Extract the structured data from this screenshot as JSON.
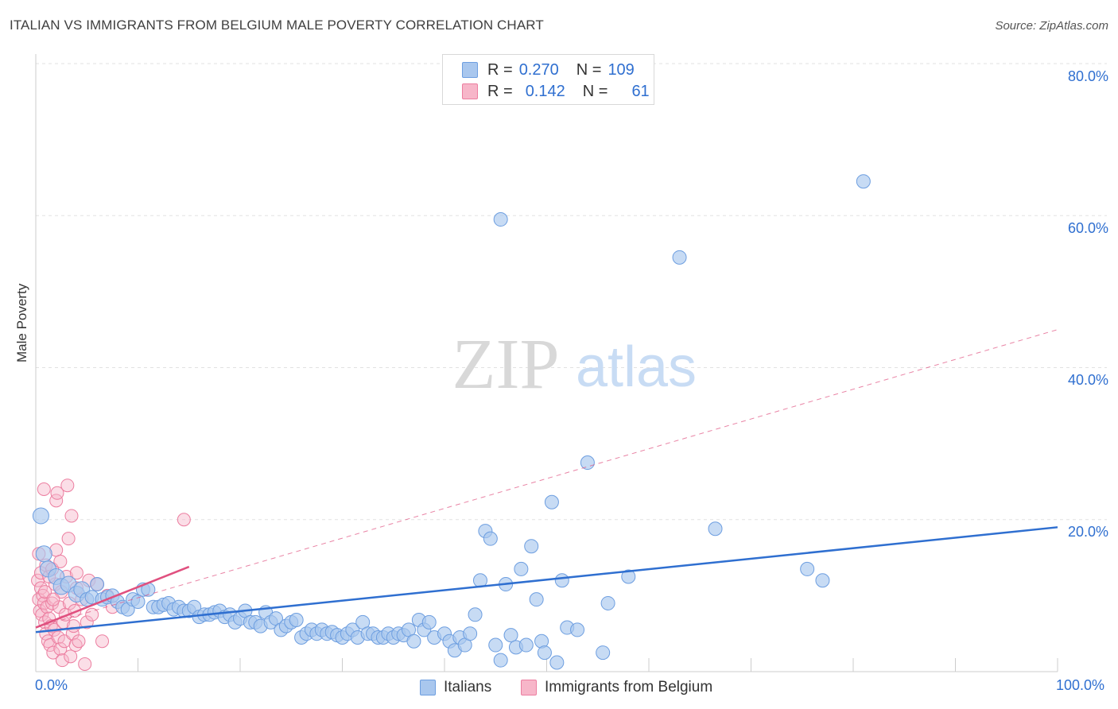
{
  "title": "ITALIAN VS IMMIGRANTS FROM BELGIUM MALE POVERTY CORRELATION CHART",
  "source": "Source: ZipAtlas.com",
  "watermark": {
    "zip": "ZIP",
    "atlas": "atlas"
  },
  "legend": {
    "italians": {
      "r_label": "R =",
      "r_value": "0.270",
      "n_label": "N =",
      "n_value": "109"
    },
    "belgium": {
      "r_label": "R =",
      "r_value": "0.142",
      "n_label": "N =",
      "n_value": "61"
    }
  },
  "colors": {
    "blue_fill": "#a9c7ee",
    "blue_stroke": "#6d9ee0",
    "blue_line": "#2f6fd0",
    "pink_fill": "#f7b6c9",
    "pink_stroke": "#ec7ea0",
    "pink_line": "#e0507f",
    "tick_text": "#2f6fd0",
    "grid": "#e2e2e2"
  },
  "chart_data": {
    "type": "scatter",
    "title": "ITALIAN VS IMMIGRANTS FROM BELGIUM MALE POVERTY CORRELATION CHART",
    "xlabel": "",
    "ylabel": "Male Poverty",
    "xlim": [
      0,
      100
    ],
    "ylim": [
      0,
      80
    ],
    "x_tick_labels": [
      "0.0%",
      "100.0%"
    ],
    "y_ticks": [
      20,
      40,
      60,
      80
    ],
    "y_tick_labels": [
      "20.0%",
      "40.0%",
      "60.0%",
      "80.0%"
    ],
    "grid": true,
    "series": [
      {
        "name": "Italians",
        "color": "blue",
        "trend": {
          "x": [
            0,
            100
          ],
          "y": [
            5.2,
            19.0
          ],
          "style": "solid"
        },
        "points": [
          [
            0.5,
            20.5
          ],
          [
            0.8,
            15.5
          ],
          [
            1.2,
            13.5
          ],
          [
            2.0,
            12.5
          ],
          [
            2.5,
            11.2
          ],
          [
            3.2,
            11.5
          ],
          [
            4.0,
            10.2
          ],
          [
            4.5,
            10.8
          ],
          [
            5.0,
            9.5
          ],
          [
            5.5,
            9.8
          ],
          [
            6.0,
            11.5
          ],
          [
            6.5,
            9.5
          ],
          [
            7.0,
            9.8
          ],
          [
            7.5,
            10.0
          ],
          [
            8.0,
            9.2
          ],
          [
            8.5,
            8.5
          ],
          [
            9.0,
            8.2
          ],
          [
            9.5,
            9.5
          ],
          [
            10.0,
            9.2
          ],
          [
            10.5,
            10.8
          ],
          [
            11.0,
            10.8
          ],
          [
            11.5,
            8.5
          ],
          [
            12.0,
            8.5
          ],
          [
            12.5,
            8.8
          ],
          [
            13.0,
            9.0
          ],
          [
            13.5,
            8.2
          ],
          [
            14.0,
            8.5
          ],
          [
            14.5,
            8.0
          ],
          [
            15.0,
            8.0
          ],
          [
            15.5,
            8.5
          ],
          [
            16.0,
            7.2
          ],
          [
            16.5,
            7.5
          ],
          [
            17.0,
            7.5
          ],
          [
            17.5,
            7.8
          ],
          [
            18.0,
            8.0
          ],
          [
            18.5,
            7.2
          ],
          [
            19.0,
            7.5
          ],
          [
            19.5,
            6.5
          ],
          [
            20.0,
            7.0
          ],
          [
            20.5,
            8.0
          ],
          [
            21.0,
            6.5
          ],
          [
            21.5,
            6.5
          ],
          [
            22.0,
            6.0
          ],
          [
            22.5,
            7.8
          ],
          [
            23.0,
            6.5
          ],
          [
            23.5,
            7.0
          ],
          [
            24.0,
            5.5
          ],
          [
            24.5,
            6.0
          ],
          [
            25.0,
            6.5
          ],
          [
            25.5,
            6.8
          ],
          [
            26.0,
            4.5
          ],
          [
            26.5,
            5.0
          ],
          [
            27.0,
            5.5
          ],
          [
            27.5,
            5.0
          ],
          [
            28.0,
            5.5
          ],
          [
            28.5,
            5.0
          ],
          [
            29.0,
            5.2
          ],
          [
            29.5,
            4.8
          ],
          [
            30.0,
            4.5
          ],
          [
            30.5,
            5.0
          ],
          [
            31.0,
            5.5
          ],
          [
            31.5,
            4.5
          ],
          [
            32.0,
            6.5
          ],
          [
            32.5,
            5.0
          ],
          [
            33.0,
            5.0
          ],
          [
            33.5,
            4.5
          ],
          [
            34.0,
            4.5
          ],
          [
            34.5,
            5.0
          ],
          [
            35.0,
            4.5
          ],
          [
            35.5,
            5.0
          ],
          [
            36.0,
            4.8
          ],
          [
            36.5,
            5.5
          ],
          [
            37.0,
            4.0
          ],
          [
            37.5,
            6.8
          ],
          [
            38.0,
            5.5
          ],
          [
            38.5,
            6.5
          ],
          [
            39.0,
            4.5
          ],
          [
            40.0,
            5.0
          ],
          [
            40.5,
            4.0
          ],
          [
            41.0,
            2.8
          ],
          [
            41.5,
            4.5
          ],
          [
            42.0,
            3.5
          ],
          [
            42.5,
            5.0
          ],
          [
            43.0,
            7.5
          ],
          [
            43.5,
            12.0
          ],
          [
            44.0,
            18.5
          ],
          [
            44.5,
            17.5
          ],
          [
            45.0,
            3.5
          ],
          [
            45.5,
            1.5
          ],
          [
            46.0,
            11.5
          ],
          [
            46.5,
            4.8
          ],
          [
            47.0,
            3.2
          ],
          [
            47.5,
            13.5
          ],
          [
            48.0,
            3.5
          ],
          [
            48.5,
            16.5
          ],
          [
            49.0,
            9.5
          ],
          [
            49.5,
            4.0
          ],
          [
            49.8,
            2.5
          ],
          [
            50.5,
            22.3
          ],
          [
            51.0,
            1.2
          ],
          [
            51.5,
            12.0
          ],
          [
            52.0,
            5.8
          ],
          [
            53.0,
            5.5
          ],
          [
            54.0,
            27.5
          ],
          [
            55.5,
            2.5
          ],
          [
            56.0,
            9.0
          ],
          [
            58.0,
            12.5
          ],
          [
            63.0,
            54.5
          ],
          [
            66.5,
            18.8
          ],
          [
            75.5,
            13.5
          ],
          [
            77.0,
            12.0
          ],
          [
            81.0,
            64.5
          ],
          [
            45.5,
            59.5
          ]
        ]
      },
      {
        "name": "Immigrants from Belgium",
        "color": "pink",
        "trend": {
          "x": [
            0,
            15
          ],
          "y": [
            5.8,
            13.8
          ],
          "style": "solid"
        },
        "trend_ext": {
          "x": [
            0,
            100
          ],
          "y": [
            5.8,
            45.0
          ],
          "style": "dashed"
        },
        "points": [
          [
            0.2,
            12.0
          ],
          [
            0.3,
            9.5
          ],
          [
            0.4,
            8.0
          ],
          [
            0.5,
            11.0
          ],
          [
            0.6,
            7.5
          ],
          [
            0.7,
            10.0
          ],
          [
            0.8,
            9.0
          ],
          [
            0.9,
            6.5
          ],
          [
            1.0,
            5.0
          ],
          [
            1.1,
            8.5
          ],
          [
            1.2,
            4.0
          ],
          [
            1.3,
            7.0
          ],
          [
            1.4,
            3.5
          ],
          [
            1.5,
            6.0
          ],
          [
            1.6,
            9.0
          ],
          [
            1.7,
            2.5
          ],
          [
            1.8,
            5.5
          ],
          [
            1.9,
            11.5
          ],
          [
            2.0,
            22.5
          ],
          [
            2.1,
            23.5
          ],
          [
            2.2,
            4.5
          ],
          [
            2.3,
            8.5
          ],
          [
            2.4,
            3.0
          ],
          [
            2.5,
            10.5
          ],
          [
            2.6,
            1.5
          ],
          [
            2.7,
            6.5
          ],
          [
            2.8,
            4.0
          ],
          [
            2.9,
            7.5
          ],
          [
            3.0,
            12.5
          ],
          [
            3.1,
            24.5
          ],
          [
            3.2,
            17.5
          ],
          [
            3.3,
            9.0
          ],
          [
            3.4,
            2.0
          ],
          [
            3.5,
            20.5
          ],
          [
            3.6,
            5.0
          ],
          [
            3.7,
            6.0
          ],
          [
            3.8,
            8.0
          ],
          [
            3.9,
            3.5
          ],
          [
            4.0,
            11.0
          ],
          [
            4.2,
            4.0
          ],
          [
            4.5,
            9.5
          ],
          [
            4.8,
            1.0
          ],
          [
            5.0,
            6.5
          ],
          [
            5.2,
            12.0
          ],
          [
            5.5,
            7.5
          ],
          [
            6.0,
            11.5
          ],
          [
            6.5,
            4.0
          ],
          [
            7.0,
            10.0
          ],
          [
            7.5,
            8.5
          ],
          [
            14.5,
            20.0
          ],
          [
            0.3,
            15.5
          ],
          [
            0.5,
            13.0
          ],
          [
            0.8,
            24.0
          ],
          [
            1.0,
            14.0
          ],
          [
            1.3,
            12.5
          ],
          [
            1.6,
            13.5
          ],
          [
            2.0,
            16.0
          ],
          [
            2.4,
            14.5
          ],
          [
            0.9,
            10.5
          ],
          [
            1.7,
            9.5
          ],
          [
            4.0,
            13.0
          ]
        ]
      }
    ]
  },
  "bottom_legend": [
    "Italians",
    "Immigrants from Belgium"
  ]
}
